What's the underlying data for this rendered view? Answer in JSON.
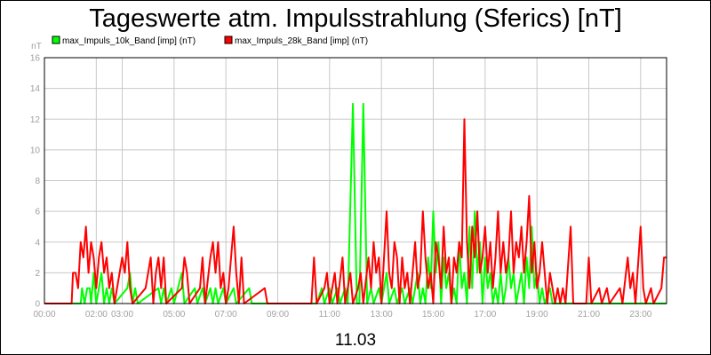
{
  "chart_data": {
    "type": "line",
    "title": "Tageswerte atm. Impulsstrahlung (Sferics) [nT]",
    "xlabel": "11.03",
    "ylabel_unit": "nT",
    "ylim": [
      0,
      16
    ],
    "yticks": [
      0,
      2,
      4,
      6,
      8,
      10,
      12,
      14,
      16
    ],
    "xlim": [
      0,
      24
    ],
    "xticks": [
      {
        "v": 0,
        "label": "00:00"
      },
      {
        "v": 2,
        "label": "02:00"
      },
      {
        "v": 3,
        "label": "03:00"
      },
      {
        "v": 5,
        "label": "05:00"
      },
      {
        "v": 7,
        "label": "07:00"
      },
      {
        "v": 9,
        "label": "09:00"
      },
      {
        "v": 11,
        "label": "11:00"
      },
      {
        "v": 13,
        "label": "13:00"
      },
      {
        "v": 15,
        "label": "15:00"
      },
      {
        "v": 17,
        "label": "17:00"
      },
      {
        "v": 19,
        "label": "19:00"
      },
      {
        "v": 21,
        "label": "21:00"
      },
      {
        "v": 23,
        "label": "23:00"
      }
    ],
    "grid": true,
    "legend_position": "top-left",
    "series": [
      {
        "name": "max_Impuls_10k_Band [imp] (nT)",
        "color": "#00ff00",
        "points": [
          [
            0,
            0
          ],
          [
            1.4,
            0
          ],
          [
            1.45,
            1
          ],
          [
            1.55,
            0
          ],
          [
            1.65,
            1
          ],
          [
            1.75,
            1
          ],
          [
            1.8,
            0
          ],
          [
            1.9,
            2
          ],
          [
            2,
            0
          ],
          [
            2.1,
            1
          ],
          [
            2.2,
            2
          ],
          [
            2.3,
            0
          ],
          [
            2.4,
            1
          ],
          [
            2.5,
            0
          ],
          [
            2.6,
            1
          ],
          [
            2.7,
            0
          ],
          [
            3.2,
            1
          ],
          [
            3.3,
            2
          ],
          [
            3.4,
            0
          ],
          [
            3.5,
            1
          ],
          [
            3.6,
            0
          ],
          [
            4.4,
            1
          ],
          [
            4.5,
            0
          ],
          [
            4.6,
            1
          ],
          [
            4.7,
            0
          ],
          [
            4.9,
            1
          ],
          [
            5,
            0
          ],
          [
            5.3,
            2
          ],
          [
            5.4,
            0
          ],
          [
            5.8,
            1
          ],
          [
            5.9,
            0
          ],
          [
            6.1,
            1
          ],
          [
            6.2,
            0
          ],
          [
            6.4,
            1
          ],
          [
            6.5,
            0
          ],
          [
            6.6,
            1
          ],
          [
            6.7,
            0
          ],
          [
            6.9,
            1
          ],
          [
            7,
            0
          ],
          [
            7.3,
            1
          ],
          [
            7.4,
            0
          ],
          [
            7.9,
            1
          ],
          [
            8,
            0
          ],
          [
            9,
            0
          ],
          [
            10.5,
            0
          ],
          [
            10.7,
            1
          ],
          [
            10.8,
            0
          ],
          [
            11,
            1
          ],
          [
            11.1,
            0
          ],
          [
            11.3,
            1
          ],
          [
            11.4,
            0
          ],
          [
            11.6,
            1
          ],
          [
            11.7,
            0
          ],
          [
            11.9,
            13
          ],
          [
            12.05,
            0
          ],
          [
            12.15,
            0
          ],
          [
            12.3,
            13
          ],
          [
            12.45,
            0
          ],
          [
            12.6,
            1
          ],
          [
            12.7,
            0
          ],
          [
            12.9,
            1
          ],
          [
            13,
            0
          ],
          [
            13.2,
            2
          ],
          [
            13.3,
            0
          ],
          [
            13.5,
            1
          ],
          [
            13.6,
            0
          ],
          [
            13.8,
            1
          ],
          [
            13.9,
            0
          ],
          [
            14.1,
            1
          ],
          [
            14.2,
            0
          ],
          [
            14.4,
            2
          ],
          [
            14.5,
            0
          ],
          [
            14.6,
            1
          ],
          [
            14.7,
            0
          ],
          [
            14.8,
            3
          ],
          [
            14.9,
            1
          ],
          [
            15,
            6
          ],
          [
            15.1,
            2
          ],
          [
            15.2,
            4
          ],
          [
            15.3,
            0
          ],
          [
            15.4,
            3
          ],
          [
            15.5,
            1
          ],
          [
            15.6,
            2
          ],
          [
            15.7,
            0
          ],
          [
            15.8,
            1
          ],
          [
            15.9,
            0
          ],
          [
            16,
            4
          ],
          [
            16.1,
            1
          ],
          [
            16.2,
            2
          ],
          [
            16.3,
            0
          ],
          [
            16.4,
            5
          ],
          [
            16.5,
            1
          ],
          [
            16.6,
            6
          ],
          [
            16.7,
            2
          ],
          [
            16.8,
            4
          ],
          [
            16.9,
            0
          ],
          [
            17,
            3
          ],
          [
            17.1,
            1
          ],
          [
            17.2,
            2
          ],
          [
            17.3,
            0
          ],
          [
            17.4,
            1
          ],
          [
            17.5,
            0
          ],
          [
            17.6,
            2
          ],
          [
            17.7,
            0
          ],
          [
            17.8,
            1
          ],
          [
            17.9,
            3
          ],
          [
            18,
            1
          ],
          [
            18.1,
            2
          ],
          [
            18.2,
            0
          ],
          [
            18.3,
            1
          ],
          [
            18.4,
            2
          ],
          [
            18.5,
            0
          ],
          [
            18.6,
            3
          ],
          [
            18.7,
            1
          ],
          [
            18.8,
            5
          ],
          [
            18.9,
            1
          ],
          [
            19,
            2
          ],
          [
            19.1,
            0
          ],
          [
            19.2,
            1
          ],
          [
            19.3,
            0
          ],
          [
            19.5,
            1
          ],
          [
            19.6,
            0
          ],
          [
            24,
            0
          ]
        ]
      },
      {
        "name": "max_Impuls_28k_Band [imp] (nT)",
        "color": "#ff0000",
        "points": [
          [
            0,
            0
          ],
          [
            1.05,
            0
          ],
          [
            1.1,
            2
          ],
          [
            1.2,
            2
          ],
          [
            1.3,
            1
          ],
          [
            1.4,
            4
          ],
          [
            1.5,
            3
          ],
          [
            1.6,
            5
          ],
          [
            1.7,
            2
          ],
          [
            1.8,
            4
          ],
          [
            1.9,
            3
          ],
          [
            2,
            1
          ],
          [
            2.1,
            3
          ],
          [
            2.2,
            4
          ],
          [
            2.3,
            2
          ],
          [
            2.4,
            3
          ],
          [
            2.5,
            1
          ],
          [
            2.6,
            2
          ],
          [
            2.7,
            0
          ],
          [
            2.8,
            1
          ],
          [
            3,
            3
          ],
          [
            3.1,
            2
          ],
          [
            3.2,
            4
          ],
          [
            3.3,
            1
          ],
          [
            3.4,
            0
          ],
          [
            3.9,
            1
          ],
          [
            4.1,
            3
          ],
          [
            4.2,
            0
          ],
          [
            4.3,
            2
          ],
          [
            4.4,
            3
          ],
          [
            4.5,
            1
          ],
          [
            4.6,
            3
          ],
          [
            4.7,
            0
          ],
          [
            5.3,
            1
          ],
          [
            5.4,
            3
          ],
          [
            5.5,
            2
          ],
          [
            5.6,
            0
          ],
          [
            6,
            1
          ],
          [
            6.1,
            3
          ],
          [
            6.2,
            0
          ],
          [
            6.4,
            3
          ],
          [
            6.5,
            4
          ],
          [
            6.6,
            2
          ],
          [
            6.7,
            4
          ],
          [
            6.8,
            1
          ],
          [
            6.9,
            2
          ],
          [
            7,
            0
          ],
          [
            7.1,
            1
          ],
          [
            7.2,
            3
          ],
          [
            7.3,
            5
          ],
          [
            7.4,
            2
          ],
          [
            7.5,
            0
          ],
          [
            7.6,
            3
          ],
          [
            7.7,
            0
          ],
          [
            8.5,
            1
          ],
          [
            8.6,
            0
          ],
          [
            10.3,
            0
          ],
          [
            10.4,
            3
          ],
          [
            10.5,
            0
          ],
          [
            10.8,
            1
          ],
          [
            10.9,
            2
          ],
          [
            11,
            0
          ],
          [
            11.2,
            2
          ],
          [
            11.3,
            0
          ],
          [
            11.5,
            3
          ],
          [
            11.6,
            0
          ],
          [
            11.8,
            2
          ],
          [
            11.9,
            0
          ],
          [
            12.1,
            1
          ],
          [
            12.2,
            2
          ],
          [
            12.3,
            0
          ],
          [
            12.5,
            3
          ],
          [
            12.6,
            1
          ],
          [
            12.7,
            4
          ],
          [
            12.8,
            2
          ],
          [
            12.9,
            3
          ],
          [
            13,
            0
          ],
          [
            13.1,
            3
          ],
          [
            13.2,
            6
          ],
          [
            13.3,
            2
          ],
          [
            13.4,
            1
          ],
          [
            13.5,
            4
          ],
          [
            13.6,
            3
          ],
          [
            13.7,
            0
          ],
          [
            13.8,
            3
          ],
          [
            13.9,
            1
          ],
          [
            14,
            2
          ],
          [
            14.1,
            0
          ],
          [
            14.3,
            4
          ],
          [
            14.4,
            1
          ],
          [
            14.5,
            2
          ],
          [
            14.6,
            6
          ],
          [
            14.7,
            3
          ],
          [
            14.8,
            1
          ],
          [
            14.9,
            2
          ],
          [
            15,
            0
          ],
          [
            15.1,
            4
          ],
          [
            15.2,
            3
          ],
          [
            15.3,
            1
          ],
          [
            15.4,
            5
          ],
          [
            15.5,
            2
          ],
          [
            15.6,
            3
          ],
          [
            15.7,
            0
          ],
          [
            15.8,
            3
          ],
          [
            15.9,
            2
          ],
          [
            16,
            4
          ],
          [
            16.1,
            3
          ],
          [
            16.2,
            12
          ],
          [
            16.3,
            4
          ],
          [
            16.4,
            1
          ],
          [
            16.5,
            5
          ],
          [
            16.6,
            3
          ],
          [
            16.7,
            6
          ],
          [
            16.8,
            2
          ],
          [
            16.9,
            3
          ],
          [
            17,
            5
          ],
          [
            17.1,
            2
          ],
          [
            17.2,
            4
          ],
          [
            17.3,
            1
          ],
          [
            17.4,
            3
          ],
          [
            17.5,
            6
          ],
          [
            17.6,
            2
          ],
          [
            17.7,
            4
          ],
          [
            17.8,
            2
          ],
          [
            17.9,
            3
          ],
          [
            18,
            6
          ],
          [
            18.1,
            2
          ],
          [
            18.2,
            4
          ],
          [
            18.3,
            3
          ],
          [
            18.4,
            5
          ],
          [
            18.5,
            2
          ],
          [
            18.6,
            4
          ],
          [
            18.7,
            7
          ],
          [
            18.8,
            2
          ],
          [
            18.9,
            4
          ],
          [
            19,
            1
          ],
          [
            19.1,
            2
          ],
          [
            19.2,
            4
          ],
          [
            19.3,
            2
          ],
          [
            19.4,
            0
          ],
          [
            19.5,
            2
          ],
          [
            19.6,
            1
          ],
          [
            19.7,
            0
          ],
          [
            19.8,
            1
          ],
          [
            19.9,
            0
          ],
          [
            20,
            1
          ],
          [
            20.1,
            0
          ],
          [
            20.3,
            5
          ],
          [
            20.4,
            0
          ],
          [
            20.9,
            0
          ],
          [
            21,
            3
          ],
          [
            21.1,
            0
          ],
          [
            21.4,
            1
          ],
          [
            21.5,
            0
          ],
          [
            21.7,
            1
          ],
          [
            21.8,
            0
          ],
          [
            22.2,
            1
          ],
          [
            22.3,
            0
          ],
          [
            22.5,
            3
          ],
          [
            22.6,
            1
          ],
          [
            22.7,
            2
          ],
          [
            22.8,
            0
          ],
          [
            23,
            5
          ],
          [
            23.1,
            1
          ],
          [
            23.2,
            0
          ],
          [
            23.4,
            1
          ],
          [
            23.5,
            0
          ],
          [
            23.8,
            1
          ],
          [
            23.9,
            3
          ],
          [
            24,
            3
          ]
        ]
      }
    ]
  }
}
